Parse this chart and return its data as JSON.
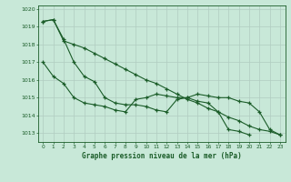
{
  "title": "Graphe pression niveau de la mer (hPa)",
  "bg_color": "#c8e8d8",
  "line_color": "#1a5c28",
  "grid_color": "#b0ccc0",
  "ylim": [
    1012.5,
    1020.2
  ],
  "xlim": [
    -0.5,
    23.5
  ],
  "yticks": [
    1013,
    1014,
    1015,
    1016,
    1017,
    1018,
    1019,
    1020
  ],
  "xticks": [
    0,
    1,
    2,
    3,
    4,
    5,
    6,
    7,
    8,
    9,
    10,
    11,
    12,
    13,
    14,
    15,
    16,
    17,
    18,
    19,
    20,
    21,
    22,
    23
  ],
  "line1_x": [
    0,
    1,
    2,
    3,
    4,
    5,
    6,
    7,
    8,
    9,
    10,
    11,
    12,
    13,
    14,
    15,
    16,
    17,
    18,
    19,
    20,
    21,
    22,
    23
  ],
  "line1_y": [
    1019.3,
    1019.4,
    1018.2,
    1018.0,
    1017.8,
    1017.5,
    1017.2,
    1016.9,
    1016.6,
    1016.3,
    1016.0,
    1015.8,
    1015.5,
    1015.2,
    1014.9,
    1014.7,
    1014.4,
    1014.2,
    1013.9,
    1013.7,
    1013.4,
    1013.2,
    1013.1,
    1012.9
  ],
  "line2_x": [
    0,
    1,
    2,
    3,
    4,
    5,
    6,
    7,
    8,
    9,
    10,
    11,
    12,
    13,
    14,
    15,
    16,
    17,
    18,
    19,
    20,
    21,
    22,
    23
  ],
  "line2_y": [
    1019.3,
    1019.4,
    1018.3,
    1017.0,
    1016.2,
    1015.9,
    1015.0,
    1014.7,
    1014.6,
    1014.6,
    1014.5,
    1014.3,
    1014.2,
    1014.9,
    1015.0,
    1015.2,
    1015.1,
    1015.0,
    1015.0,
    1014.8,
    1014.7,
    1014.2,
    1013.2,
    1012.9
  ],
  "line3_x": [
    0,
    1,
    2,
    3,
    4,
    5,
    6,
    7,
    8,
    9,
    10,
    11,
    12,
    13,
    14,
    15,
    16,
    17,
    18,
    19,
    20
  ],
  "line3_y": [
    1017.0,
    1016.2,
    1015.8,
    1015.0,
    1014.7,
    1014.6,
    1014.5,
    1014.3,
    1014.2,
    1014.9,
    1015.0,
    1015.2,
    1015.1,
    1015.0,
    1015.0,
    1014.8,
    1014.7,
    1014.2,
    1013.2,
    1013.1,
    1012.9
  ]
}
